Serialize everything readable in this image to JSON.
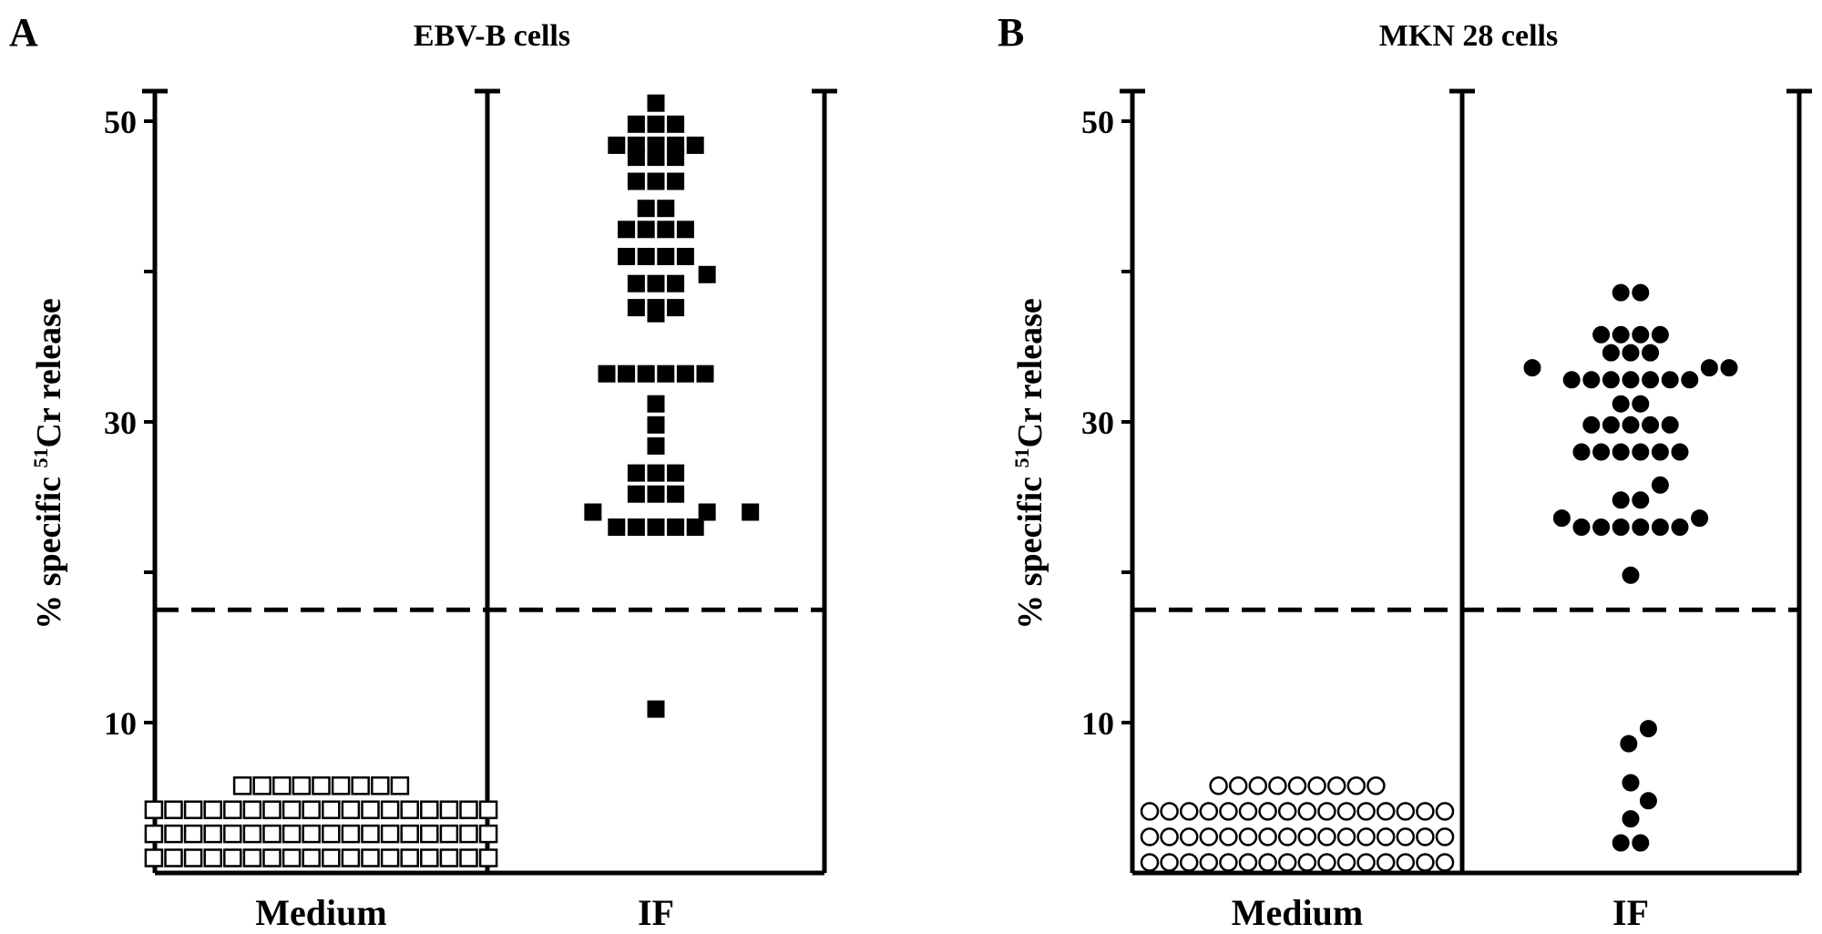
{
  "chart_data": [
    {
      "type": "scatter",
      "panel_label": "A",
      "title": "EBV-B cells",
      "ylabel_pre": "% specific ",
      "ylabel_sup": "51",
      "ylabel_post": "Cr release",
      "ylim": [
        0,
        52
      ],
      "yticks_labeled": [
        10,
        30,
        50
      ],
      "yticks_minor": [
        20,
        40
      ],
      "threshold": 17.5,
      "marker": "square",
      "categories": [
        "Medium",
        "IF"
      ],
      "series": [
        {
          "group": "Medium",
          "filled": false,
          "rows": [
            {
              "y": 1.0,
              "count": 18
            },
            {
              "y": 2.6,
              "count": 18
            },
            {
              "y": 4.2,
              "count": 18
            },
            {
              "y": 5.8,
              "count": 9
            }
          ]
        },
        {
          "group": "IF",
          "filled": true,
          "rows": [
            {
              "y": 51.2,
              "count": 1
            },
            {
              "y": 49.8,
              "count": 3
            },
            {
              "y": 48.4,
              "count": 5
            },
            {
              "y": 47.6,
              "count": 3
            },
            {
              "y": 46.0,
              "count": 3
            },
            {
              "y": 44.2,
              "count": 2
            },
            {
              "y": 42.8,
              "count": 4
            },
            {
              "y": 41.0,
              "count": 4
            },
            {
              "y": 39.8,
              "count": 1,
              "offset": 2.6
            },
            {
              "y": 39.2,
              "count": 3
            },
            {
              "y": 37.6,
              "count": 3
            },
            {
              "y": 37.2,
              "count": 1,
              "offset": 0
            },
            {
              "y": 33.2,
              "count": 6
            },
            {
              "y": 31.2,
              "count": 1
            },
            {
              "y": 29.8,
              "count": 1
            },
            {
              "y": 28.4,
              "count": 1
            },
            {
              "y": 26.6,
              "count": 3
            },
            {
              "y": 25.2,
              "count": 3
            },
            {
              "y": 24.0,
              "count": 1,
              "offset": -3.2
            },
            {
              "y": 24.0,
              "count": 1,
              "offset": 2.6
            },
            {
              "y": 24.0,
              "count": 1,
              "offset": 4.8
            },
            {
              "y": 23.0,
              "count": 5
            },
            {
              "y": 10.9,
              "count": 1
            }
          ]
        }
      ]
    },
    {
      "type": "scatter",
      "panel_label": "B",
      "title": "MKN 28 cells",
      "ylabel_pre": "% specific ",
      "ylabel_sup": "51",
      "ylabel_post": "Cr release",
      "ylim": [
        0,
        52
      ],
      "yticks_labeled": [
        10,
        30,
        50
      ],
      "yticks_minor": [
        20,
        40
      ],
      "threshold": 17.5,
      "marker": "circle",
      "categories": [
        "Medium",
        "IF"
      ],
      "series": [
        {
          "group": "Medium",
          "filled": false,
          "rows": [
            {
              "y": 0.7,
              "count": 16
            },
            {
              "y": 2.4,
              "count": 16
            },
            {
              "y": 4.1,
              "count": 16
            },
            {
              "y": 5.8,
              "count": 9
            }
          ]
        },
        {
          "group": "IF",
          "filled": true,
          "rows": [
            {
              "y": 38.6,
              "count": 2
            },
            {
              "y": 35.8,
              "count": 4
            },
            {
              "y": 34.6,
              "count": 3
            },
            {
              "y": 33.6,
              "count": 1,
              "offset": -5.0
            },
            {
              "y": 33.6,
              "count": 2,
              "offset": 4.5
            },
            {
              "y": 32.8,
              "count": 7
            },
            {
              "y": 31.2,
              "count": 2
            },
            {
              "y": 29.8,
              "count": 5
            },
            {
              "y": 28.0,
              "count": 6
            },
            {
              "y": 25.8,
              "count": 1,
              "offset": 1.5
            },
            {
              "y": 24.8,
              "count": 2
            },
            {
              "y": 23.6,
              "count": 1,
              "offset": -3.5
            },
            {
              "y": 23.6,
              "count": 1,
              "offset": 3.5
            },
            {
              "y": 23.0,
              "count": 6
            },
            {
              "y": 19.8,
              "count": 1
            },
            {
              "y": 9.6,
              "count": 1,
              "offset": 0.9
            },
            {
              "y": 8.6,
              "count": 1,
              "offset": -0.1
            },
            {
              "y": 6.0,
              "count": 1
            },
            {
              "y": 4.8,
              "count": 1,
              "offset": 0.9
            },
            {
              "y": 3.6,
              "count": 1
            },
            {
              "y": 2.0,
              "count": 2
            }
          ]
        }
      ]
    }
  ]
}
